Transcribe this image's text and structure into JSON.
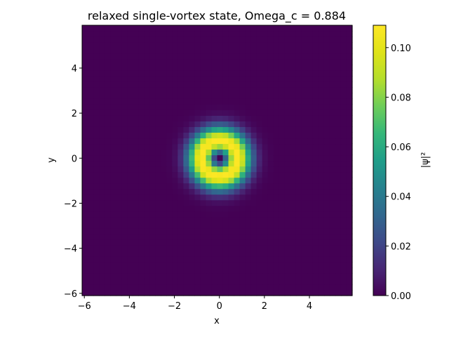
{
  "chart_data": {
    "type": "heatmap",
    "title": "relaxed single-vortex state, Omega_c = 0.884",
    "xlabel": "x",
    "ylabel": "y",
    "colorbar_label": "|ψ|²",
    "colormap": "viridis",
    "xlim": [
      -6.1,
      5.9
    ],
    "ylim": [
      -6.1,
      5.9
    ],
    "clim": [
      0.0,
      0.109
    ],
    "x_ticks": [
      -6,
      -4,
      -2,
      0,
      2,
      4
    ],
    "x_tick_labels": [
      "−6",
      "−4",
      "−2",
      "0",
      "2",
      "4"
    ],
    "y_ticks": [
      -6,
      -4,
      -2,
      0,
      2,
      4
    ],
    "y_tick_labels": [
      "−6",
      "−4",
      "−2",
      "0",
      "2",
      "4"
    ],
    "colorbar_ticks": [
      0.0,
      0.02,
      0.04,
      0.06,
      0.08,
      0.1
    ],
    "colorbar_tick_labels": [
      "0.00",
      "0.02",
      "0.04",
      "0.06",
      "0.08",
      "0.10"
    ],
    "field": {
      "description": "single vortex ring: density |psi|^2 peaks on a ring around the origin and vanishes at the vortex core",
      "grid_n": 48,
      "peak_value": 0.109,
      "ring_peak_radius": 0.8,
      "core_value_at_origin": 0.0
    }
  }
}
